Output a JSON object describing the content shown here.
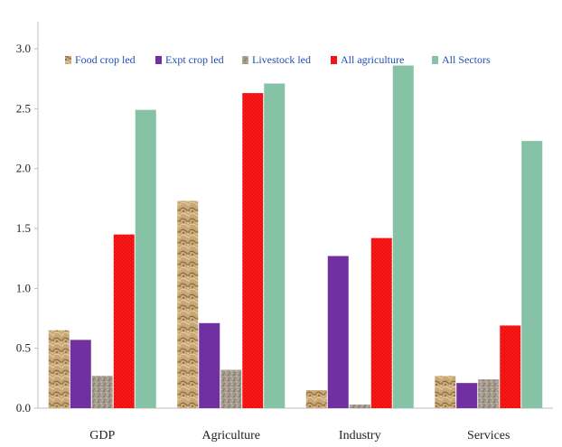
{
  "chart_data": {
    "type": "bar",
    "title": "",
    "xlabel": "",
    "ylabel": "",
    "ylim": [
      0,
      3.0
    ],
    "yticks": [
      "0.0",
      "0.5",
      "1.0",
      "1.5",
      "2.0",
      "2.5",
      "3.0"
    ],
    "categories": [
      "GDP",
      "Agriculture",
      "Industry",
      "Services"
    ],
    "grid": false,
    "legend_position": "top",
    "series": [
      {
        "name": "Food crop led",
        "color": "#c9a877",
        "pattern": "sand",
        "values": [
          0.65,
          1.73,
          0.15,
          0.27
        ]
      },
      {
        "name": "Expt crop led",
        "color": "#7030a0",
        "pattern": "solid",
        "values": [
          0.57,
          0.71,
          1.27,
          0.21
        ]
      },
      {
        "name": "Livestock led",
        "color": "#a59c8e",
        "pattern": "granite",
        "values": [
          0.27,
          0.32,
          0.03,
          0.24
        ]
      },
      {
        "name": "All agriculture",
        "color": "#ff1a1a",
        "pattern": "dots",
        "values": [
          1.45,
          2.63,
          1.42,
          0.69
        ]
      },
      {
        "name": "All Sectors",
        "color": "#86c2a5",
        "pattern": "solid",
        "values": [
          2.49,
          2.71,
          2.86,
          2.23
        ]
      }
    ],
    "legend_text_color": "#1f4fb4"
  }
}
